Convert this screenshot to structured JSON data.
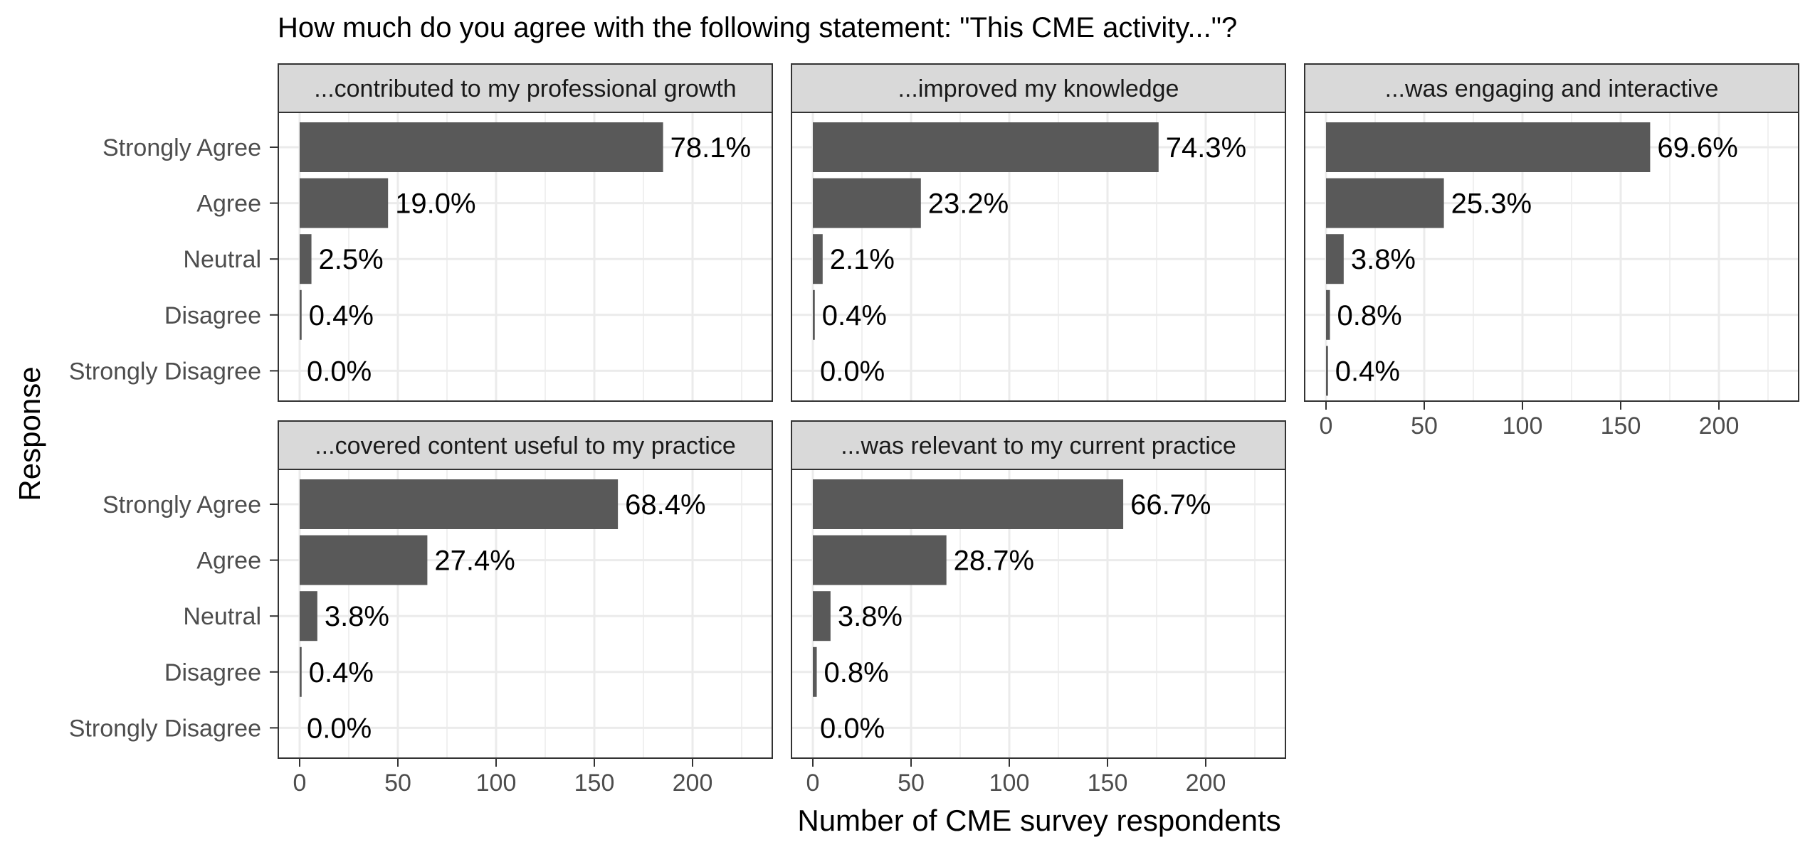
{
  "chart_data": {
    "type": "bar",
    "orientation": "horizontal",
    "title": "How much do you agree with the following statement: \"This CME activity...\"?",
    "xlabel": "Number of CME survey respondents",
    "ylabel": "Response",
    "categories": [
      "Strongly Agree",
      "Agree",
      "Neutral",
      "Disagree",
      "Strongly Disagree"
    ],
    "xlim": [
      0,
      240
    ],
    "x_ticks": [
      0,
      50,
      100,
      150,
      200
    ],
    "grid": true,
    "colors": {
      "bar": "#595959",
      "strip_bg": "#d9d9d9",
      "grid": "#ebebeb",
      "border": "#333333"
    },
    "facets": [
      {
        "label": "...contributed to my professional growth",
        "values": [
          185,
          45,
          6,
          1,
          0
        ],
        "percent_labels": [
          "78.1%",
          "19.0%",
          "2.5%",
          "0.4%",
          "0.0%"
        ]
      },
      {
        "label": "...improved my knowledge",
        "values": [
          176,
          55,
          5,
          1,
          0
        ],
        "percent_labels": [
          "74.3%",
          "23.2%",
          "2.1%",
          "0.4%",
          "0.0%"
        ]
      },
      {
        "label": "...was engaging and interactive",
        "values": [
          165,
          60,
          9,
          2,
          1
        ],
        "percent_labels": [
          "69.6%",
          "25.3%",
          "3.8%",
          "0.8%",
          "0.4%"
        ]
      },
      {
        "label": "...covered content useful to my practice",
        "values": [
          162,
          65,
          9,
          1,
          0
        ],
        "percent_labels": [
          "68.4%",
          "27.4%",
          "3.8%",
          "0.4%",
          "0.0%"
        ]
      },
      {
        "label": "...was relevant to my current practice",
        "values": [
          158,
          68,
          9,
          2,
          0
        ],
        "percent_labels": [
          "66.7%",
          "28.7%",
          "3.8%",
          "0.8%",
          "0.0%"
        ]
      }
    ]
  }
}
